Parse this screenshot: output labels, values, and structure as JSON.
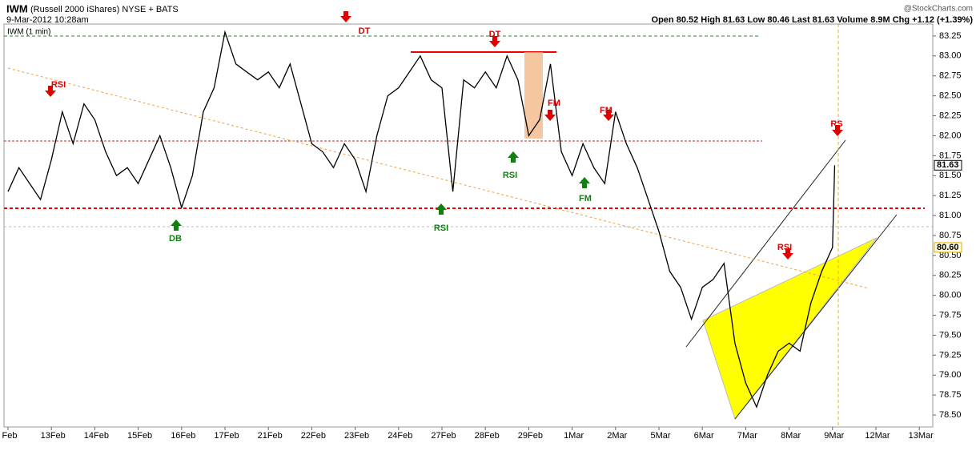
{
  "chart_data": {
    "type": "line",
    "header": {
      "symbol": "IWM",
      "description": "(Russell 2000 iShares) NYSE + BATS",
      "timestamp": "9-Mar-2012 10:28am",
      "quote": "Open 80.52  High 81.63  Low 80.46  Last 81.63  Volume 8.9M  Chg +1.12 (+1.39%)",
      "source": "@StockCharts.com"
    },
    "legend_label": "IWM (1 min)",
    "series": [
      {
        "name": "IWM",
        "color": "#000000",
        "x": [
          0,
          0.25,
          0.5,
          0.75,
          1,
          1.25,
          1.5,
          1.75,
          2,
          2.25,
          2.5,
          2.75,
          3,
          3.25,
          3.5,
          3.75,
          4,
          4.25,
          4.5,
          4.75,
          5,
          5.25,
          5.5,
          5.75,
          6,
          6.25,
          6.5,
          6.75,
          7,
          7.25,
          7.5,
          7.75,
          8,
          8.25,
          8.5,
          8.75,
          9,
          9.25,
          9.5,
          9.75,
          10,
          10.25,
          10.5,
          10.75,
          11,
          11.25,
          11.5,
          11.75,
          12,
          12.25,
          12.5,
          12.75,
          13,
          13.25,
          13.5,
          13.75,
          14,
          14.25,
          14.5,
          14.75,
          15,
          15.25,
          15.5,
          15.75,
          16,
          16.25,
          16.5,
          16.75,
          17,
          17.25,
          17.5,
          17.75,
          18,
          18.25,
          18.5,
          18.75,
          19,
          19.05
        ],
        "values": [
          81.3,
          81.6,
          81.4,
          81.2,
          81.7,
          82.3,
          81.9,
          82.4,
          82.2,
          81.8,
          81.5,
          81.6,
          81.4,
          81.7,
          82.0,
          81.6,
          81.1,
          81.5,
          82.3,
          82.6,
          83.3,
          82.9,
          82.8,
          82.7,
          82.8,
          82.6,
          82.9,
          82.4,
          81.9,
          81.8,
          81.6,
          81.9,
          81.7,
          81.3,
          82.0,
          82.5,
          82.6,
          82.8,
          83.0,
          82.7,
          82.6,
          81.3,
          82.7,
          82.6,
          82.8,
          82.6,
          83.0,
          82.7,
          82.0,
          82.2,
          82.9,
          81.8,
          81.5,
          81.9,
          81.6,
          81.4,
          82.3,
          81.9,
          81.6,
          81.2,
          80.8,
          80.3,
          80.1,
          79.7,
          80.1,
          80.2,
          80.4,
          79.4,
          78.9,
          78.6,
          79.0,
          79.3,
          79.4,
          79.3,
          79.9,
          80.3,
          80.6,
          81.63
        ]
      }
    ],
    "xlim": [
      0,
      21.2
    ],
    "xticks": [
      {
        "value": 0,
        "label": "Feb"
      },
      {
        "value": 1,
        "label": "13Feb"
      },
      {
        "value": 2,
        "label": "14Feb"
      },
      {
        "value": 3,
        "label": "15Feb"
      },
      {
        "value": 4,
        "label": "16Feb"
      },
      {
        "value": 5,
        "label": "17Feb"
      },
      {
        "value": 6,
        "label": "21Feb"
      },
      {
        "value": 7,
        "label": "22Feb"
      },
      {
        "value": 8,
        "label": "23Feb"
      },
      {
        "value": 9,
        "label": "24Feb"
      },
      {
        "value": 10,
        "label": "27Feb"
      },
      {
        "value": 11,
        "label": "28Feb"
      },
      {
        "value": 12,
        "label": "29Feb"
      },
      {
        "value": 13,
        "label": "1Mar"
      },
      {
        "value": 14,
        "label": "2Mar"
      },
      {
        "value": 15,
        "label": "5Mar"
      },
      {
        "value": 16,
        "label": "6Mar"
      },
      {
        "value": 17,
        "label": "7Mar"
      },
      {
        "value": 18,
        "label": "8Mar"
      },
      {
        "value": 19,
        "label": "9Mar"
      },
      {
        "value": 20,
        "label": "12Mar"
      },
      {
        "value": 21,
        "label": "13Mar"
      }
    ],
    "ylim": [
      78.35,
      83.4
    ],
    "yticks": [
      {
        "value": 78.5,
        "label": "78.50"
      },
      78.75,
      {
        "value": 79,
        "label": "79.00"
      },
      79.25,
      {
        "value": 79.5,
        "label": "79.50"
      },
      79.75,
      {
        "value": 80,
        "label": "80.00"
      },
      80.25,
      {
        "value": 80.5,
        "label": "80.50"
      },
      80.75,
      {
        "value": 81,
        "label": "81.00"
      },
      81.25,
      {
        "value": 81.5,
        "label": "81.50"
      },
      81.75,
      {
        "value": 82,
        "label": "82.00"
      },
      82.25,
      {
        "value": 82.5,
        "label": "82.50"
      },
      82.75,
      {
        "value": 83,
        "label": "83.00"
      },
      83.25
    ],
    "price_labels": [
      {
        "value": 81.63,
        "label": "81.63"
      },
      {
        "value": 80.6,
        "label": "80.60"
      }
    ],
    "annotations": [
      {
        "text": "DT",
        "color": "#e00000"
      },
      {
        "text": "DT",
        "color": "#e00000"
      },
      {
        "text": "RSI",
        "color": "#e00000"
      },
      {
        "text": "FM",
        "color": "#e00000"
      },
      {
        "text": "FM",
        "color": "#e00000"
      },
      {
        "text": "RS",
        "color": "#e00000"
      },
      {
        "text": "RSI",
        "color": "#e00000"
      },
      {
        "text": "RSI",
        "color": "#108010"
      },
      {
        "text": "DB",
        "color": "#108010"
      },
      {
        "text": "RSI",
        "color": "#108010"
      },
      {
        "text": "FM",
        "color": "#108010"
      }
    ]
  }
}
